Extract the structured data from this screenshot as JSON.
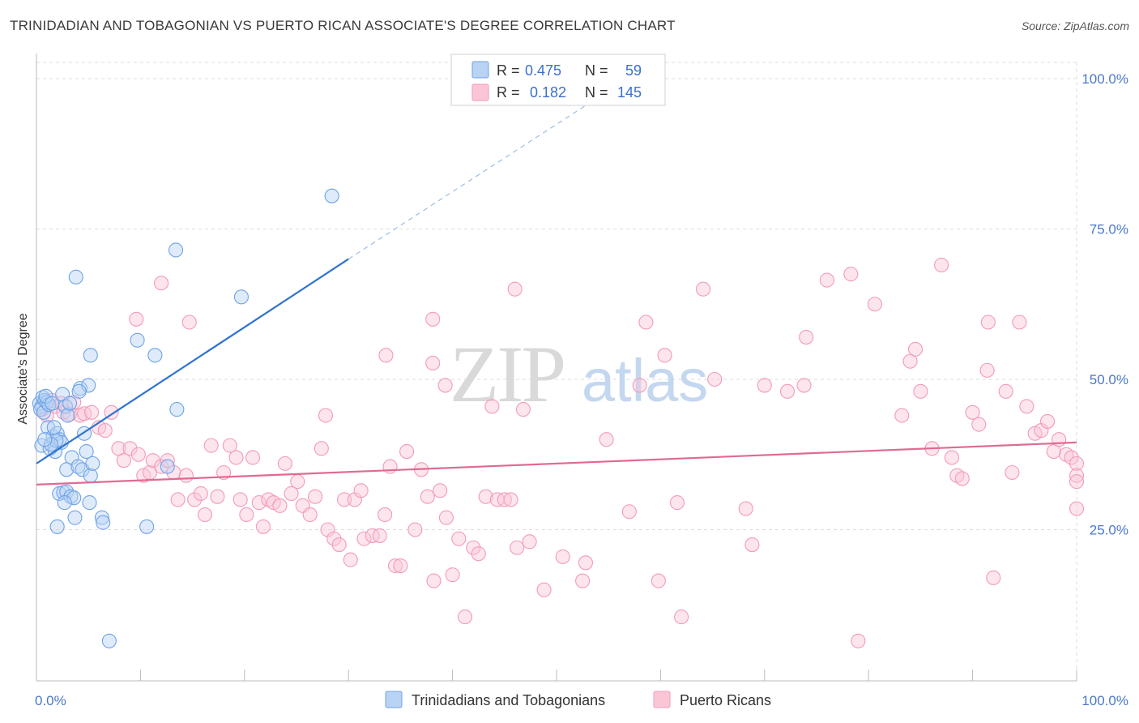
{
  "title": "TRINIDADIAN AND TOBAGONIAN VS PUERTO RICAN ASSOCIATE'S DEGREE CORRELATION CHART",
  "source": "Source: ZipAtlas.com",
  "watermark": {
    "zip": "ZIP",
    "atlas": "atlas"
  },
  "colors": {
    "blue": "#6ea3e8",
    "blue_line": "#2f73d0",
    "pink": "#f29bb8",
    "pink_line": "#e06a93",
    "axis_label": "#4a78c8"
  },
  "legend_top": {
    "r_label": "R =",
    "n_label": "N =",
    "rows": [
      {
        "r": "0.475",
        "n": "59"
      },
      {
        "r": "0.182",
        "n": "145"
      }
    ]
  },
  "chart_data": {
    "type": "scatter",
    "xlabel": "",
    "ylabel": "Associate's Degree",
    "xlim": [
      0,
      100
    ],
    "ylim": [
      0,
      105
    ],
    "x_tick_labels": {
      "min": "0.0%",
      "max": "100.0%"
    },
    "y_ticks": [
      {
        "value": 25,
        "label": "25.0%"
      },
      {
        "value": 50,
        "label": "50.0%"
      },
      {
        "value": 75,
        "label": "75.0%"
      },
      {
        "value": 100,
        "label": "100.0%"
      }
    ],
    "grid": true,
    "legend_position": "bottom-center",
    "series": [
      {
        "name": "Trinidadians and Tobagonians",
        "color": "#6ea3e8",
        "trend": {
          "x0": 0,
          "y0": 36.0,
          "x1": 30,
          "y1": 70.0,
          "x_dash_end": 55,
          "y_dash_end": 98
        },
        "points": [
          [
            0.3,
            46.0
          ],
          [
            0.5,
            45.5
          ],
          [
            0.6,
            47.0
          ],
          [
            0.8,
            46.5
          ],
          [
            0.4,
            45.0
          ],
          [
            0.7,
            44.5
          ],
          [
            1.0,
            46.2
          ],
          [
            1.2,
            45.8
          ],
          [
            0.9,
            47.2
          ],
          [
            1.5,
            46.0
          ],
          [
            0.5,
            39.0
          ],
          [
            1.1,
            42.0
          ],
          [
            1.3,
            38.5
          ],
          [
            1.6,
            40.5
          ],
          [
            1.8,
            38.0
          ],
          [
            2.0,
            41.0
          ],
          [
            2.2,
            40.0
          ],
          [
            2.4,
            39.5
          ],
          [
            1.9,
            39.8
          ],
          [
            1.4,
            39.2
          ],
          [
            2.5,
            47.5
          ],
          [
            2.8,
            45.5
          ],
          [
            3.0,
            44.0
          ],
          [
            4.2,
            48.5
          ],
          [
            5.0,
            49.0
          ],
          [
            4.6,
            41.0
          ],
          [
            4.8,
            38.0
          ],
          [
            2.9,
            35.0
          ],
          [
            3.4,
            37.0
          ],
          [
            4.0,
            35.5
          ],
          [
            4.4,
            35.0
          ],
          [
            5.2,
            34.0
          ],
          [
            5.4,
            36.0
          ],
          [
            2.2,
            31.0
          ],
          [
            2.6,
            31.2
          ],
          [
            2.9,
            31.3
          ],
          [
            3.3,
            30.5
          ],
          [
            3.6,
            30.3
          ],
          [
            2.7,
            29.5
          ],
          [
            5.1,
            29.5
          ],
          [
            2.0,
            25.5
          ],
          [
            3.7,
            27.0
          ],
          [
            6.3,
            27.0
          ],
          [
            6.4,
            26.2
          ],
          [
            10.6,
            25.5
          ],
          [
            7.0,
            6.5
          ],
          [
            3.8,
            67.0
          ],
          [
            5.2,
            54.0
          ],
          [
            9.7,
            56.5
          ],
          [
            11.4,
            54.0
          ],
          [
            13.4,
            71.5
          ],
          [
            19.7,
            63.7
          ],
          [
            28.4,
            80.5
          ],
          [
            13.5,
            45.0
          ],
          [
            12.6,
            35.5
          ],
          [
            4.1,
            48.0
          ],
          [
            1.7,
            42.0
          ],
          [
            0.8,
            40.0
          ],
          [
            3.2,
            46.0
          ]
        ]
      },
      {
        "name": "Puerto Ricans",
        "color": "#f29bb8",
        "trend": {
          "x0": 0,
          "y0": 32.5,
          "x1": 100,
          "y1": 39.5
        },
        "points": [
          [
            0.6,
            45.0
          ],
          [
            1.0,
            44.0
          ],
          [
            1.5,
            46.5
          ],
          [
            1.8,
            45.5
          ],
          [
            2.4,
            46.0
          ],
          [
            2.6,
            44.5
          ],
          [
            3.2,
            44.2
          ],
          [
            3.6,
            46.2
          ],
          [
            4.2,
            44.0
          ],
          [
            4.6,
            44.3
          ],
          [
            5.3,
            44.5
          ],
          [
            6.0,
            42.0
          ],
          [
            6.6,
            41.5
          ],
          [
            7.2,
            44.5
          ],
          [
            7.9,
            38.5
          ],
          [
            8.4,
            36.5
          ],
          [
            9.0,
            38.5
          ],
          [
            9.8,
            37.5
          ],
          [
            10.3,
            34.0
          ],
          [
            10.9,
            34.5
          ],
          [
            11.2,
            36.5
          ],
          [
            12.0,
            35.5
          ],
          [
            12.6,
            36.5
          ],
          [
            13.2,
            34.5
          ],
          [
            13.6,
            30.0
          ],
          [
            14.4,
            34.0
          ],
          [
            15.2,
            30.0
          ],
          [
            15.8,
            31.0
          ],
          [
            16.2,
            27.5
          ],
          [
            16.8,
            39.0
          ],
          [
            17.4,
            30.5
          ],
          [
            18.0,
            34.5
          ],
          [
            18.6,
            39.0
          ],
          [
            19.2,
            37.0
          ],
          [
            19.6,
            30.0
          ],
          [
            20.2,
            27.5
          ],
          [
            20.8,
            37.0
          ],
          [
            21.4,
            29.5
          ],
          [
            21.8,
            25.5
          ],
          [
            22.3,
            30.0
          ],
          [
            22.8,
            29.5
          ],
          [
            23.4,
            29.0
          ],
          [
            23.9,
            36.0
          ],
          [
            24.5,
            31.0
          ],
          [
            25.1,
            33.0
          ],
          [
            25.6,
            29.0
          ],
          [
            26.3,
            27.5
          ],
          [
            26.8,
            30.5
          ],
          [
            27.4,
            38.5
          ],
          [
            28.0,
            25.0
          ],
          [
            28.6,
            23.5
          ],
          [
            29.1,
            22.5
          ],
          [
            29.6,
            30.0
          ],
          [
            30.2,
            20.0
          ],
          [
            30.6,
            30.0
          ],
          [
            31.2,
            31.5
          ],
          [
            31.5,
            23.5
          ],
          [
            32.3,
            24.0
          ],
          [
            33.0,
            24.0
          ],
          [
            33.5,
            27.5
          ],
          [
            34.0,
            35.5
          ],
          [
            34.5,
            19.0
          ],
          [
            35.0,
            19.0
          ],
          [
            35.6,
            38.0
          ],
          [
            36.4,
            25.0
          ],
          [
            37.0,
            35.0
          ],
          [
            37.6,
            30.5
          ],
          [
            38.2,
            16.5
          ],
          [
            38.8,
            31.5
          ],
          [
            39.4,
            27.0
          ],
          [
            40.0,
            17.5
          ],
          [
            40.6,
            23.5
          ],
          [
            41.2,
            10.5
          ],
          [
            42.0,
            22.0
          ],
          [
            42.5,
            21.0
          ],
          [
            43.2,
            30.5
          ],
          [
            43.8,
            45.5
          ],
          [
            44.3,
            30.0
          ],
          [
            45.0,
            30.0
          ],
          [
            45.6,
            30.0
          ],
          [
            46.2,
            22.0
          ],
          [
            46.8,
            45.0
          ],
          [
            47.4,
            23.0
          ],
          [
            48.8,
            15.0
          ],
          [
            50.6,
            20.5
          ],
          [
            52.5,
            16.5
          ],
          [
            52.8,
            19.5
          ],
          [
            54.8,
            40.0
          ],
          [
            57.0,
            28.0
          ],
          [
            58.0,
            49.0
          ],
          [
            59.8,
            16.5
          ],
          [
            60.4,
            54.0
          ],
          [
            61.6,
            29.5
          ],
          [
            62.0,
            10.5
          ],
          [
            64.1,
            65.0
          ],
          [
            65.2,
            50.0
          ],
          [
            68.2,
            28.5
          ],
          [
            68.8,
            22.5
          ],
          [
            70.0,
            49.0
          ],
          [
            72.2,
            48.0
          ],
          [
            73.8,
            49.0
          ],
          [
            76.0,
            66.5
          ],
          [
            78.3,
            67.5
          ],
          [
            79.0,
            6.5
          ],
          [
            80.6,
            62.5
          ],
          [
            83.2,
            44.0
          ],
          [
            84.0,
            53.0
          ],
          [
            85.0,
            48.0
          ],
          [
            86.1,
            38.5
          ],
          [
            87.0,
            69.0
          ],
          [
            88.0,
            37.0
          ],
          [
            88.5,
            34.0
          ],
          [
            89.0,
            33.5
          ],
          [
            90.0,
            44.5
          ],
          [
            90.6,
            42.5
          ],
          [
            91.4,
            51.5
          ],
          [
            92.0,
            17.0
          ],
          [
            93.2,
            48.0
          ],
          [
            93.8,
            34.5
          ],
          [
            94.5,
            59.5
          ],
          [
            95.2,
            45.5
          ],
          [
            96.0,
            41.0
          ],
          [
            96.6,
            41.5
          ],
          [
            97.2,
            43.0
          ],
          [
            97.8,
            38.0
          ],
          [
            98.3,
            40.0
          ],
          [
            99.0,
            37.5
          ],
          [
            99.5,
            37.0
          ],
          [
            100.0,
            36.0
          ],
          [
            100.0,
            34.0
          ],
          [
            100.0,
            33.0
          ],
          [
            100.0,
            28.5
          ],
          [
            58.6,
            59.5
          ],
          [
            38.1,
            60.0
          ],
          [
            39.3,
            49.0
          ],
          [
            27.8,
            44.0
          ],
          [
            46.0,
            65.0
          ],
          [
            9.6,
            60.0
          ],
          [
            14.7,
            59.5
          ],
          [
            12.0,
            66.0
          ],
          [
            33.6,
            54.0
          ],
          [
            38.1,
            52.7
          ],
          [
            91.5,
            59.5
          ],
          [
            74.0,
            57.0
          ],
          [
            84.5,
            55.0
          ]
        ]
      }
    ]
  }
}
